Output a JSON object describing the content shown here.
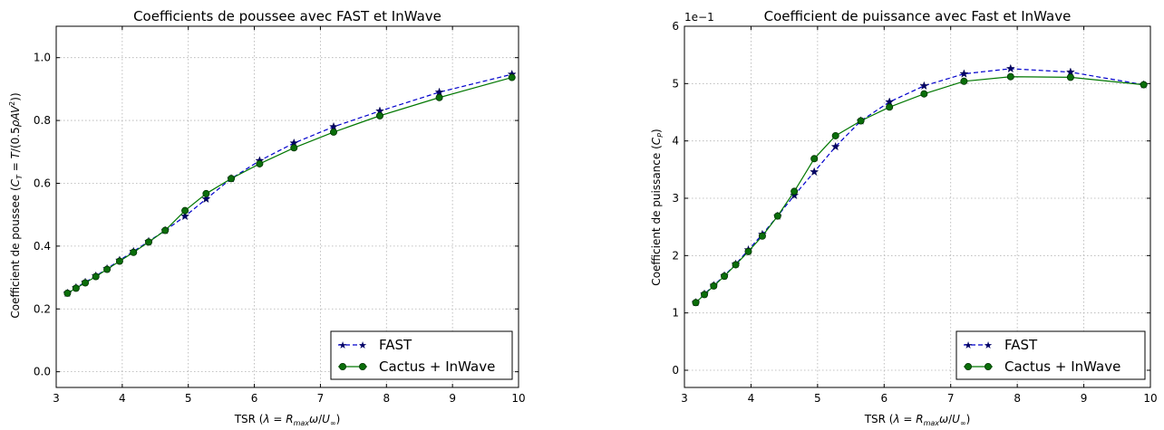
{
  "chart_data": [
    {
      "type": "line",
      "title": "Coefficients de poussee avec FAST et InWave",
      "xlabel": "TSR (λ = R_max ω / U_∞)",
      "ylabel": "Coefficient de poussee (C_T = T / (0.5 ρ A V²))",
      "xlim": [
        3,
        10
      ],
      "ylim": [
        -0.05,
        1.1
      ],
      "xticks": [
        3,
        4,
        5,
        6,
        7,
        8,
        9,
        10
      ],
      "xtick_labels": [
        "3",
        "4",
        "5",
        "6",
        "7",
        "8",
        "9",
        "10"
      ],
      "yticks": [
        0.0,
        0.2,
        0.4,
        0.6,
        0.8,
        1.0
      ],
      "ytick_labels": [
        "0.0",
        "0.2",
        "0.4",
        "0.6",
        "0.8",
        "1.0"
      ],
      "grid": true,
      "legend_position": "bottom-right",
      "series": [
        {
          "name": "FAST",
          "style": "dashed-star",
          "color": "#0000cc",
          "x": [
            3.17,
            3.3,
            3.44,
            3.6,
            3.77,
            3.96,
            4.17,
            4.4,
            4.65,
            4.95,
            5.27,
            5.65,
            6.08,
            6.6,
            7.2,
            7.9,
            8.8,
            9.9
          ],
          "y": [
            0.25,
            0.268,
            0.285,
            0.305,
            0.328,
            0.355,
            0.383,
            0.415,
            0.45,
            0.495,
            0.55,
            0.615,
            0.672,
            0.728,
            0.78,
            0.83,
            0.89,
            0.947
          ]
        },
        {
          "name": "Cactus + InWave",
          "style": "solid-circle",
          "color": "#007700",
          "x": [
            3.17,
            3.3,
            3.44,
            3.6,
            3.77,
            3.96,
            4.17,
            4.4,
            4.65,
            4.95,
            5.27,
            5.65,
            6.08,
            6.6,
            7.2,
            7.9,
            8.8,
            9.9
          ],
          "y": [
            0.25,
            0.266,
            0.283,
            0.303,
            0.326,
            0.352,
            0.38,
            0.413,
            0.45,
            0.513,
            0.567,
            0.615,
            0.662,
            0.713,
            0.763,
            0.815,
            0.873,
            0.937
          ]
        }
      ]
    },
    {
      "type": "line",
      "title": "Coefficient de puissance avec Fast et InWave",
      "xlabel": "TSR (λ = R_max ω / U_∞)",
      "ylabel": "Coefficient de puissance (C_P)",
      "scale_note": "1e−1",
      "xlim": [
        3,
        10
      ],
      "ylim": [
        -0.3,
        6
      ],
      "xticks": [
        3,
        4,
        5,
        6,
        7,
        8,
        9,
        10
      ],
      "xtick_labels": [
        "3",
        "4",
        "5",
        "6",
        "7",
        "8",
        "9",
        "10"
      ],
      "yticks": [
        0,
        1,
        2,
        3,
        4,
        5,
        6
      ],
      "ytick_labels": [
        "0",
        "1",
        "2",
        "3",
        "4",
        "5",
        "6"
      ],
      "grid": true,
      "legend_position": "bottom-right",
      "series": [
        {
          "name": "FAST",
          "style": "dashed-star",
          "color": "#0000cc",
          "x": [
            3.17,
            3.3,
            3.44,
            3.6,
            3.77,
            3.96,
            4.17,
            4.4,
            4.65,
            4.95,
            5.27,
            5.65,
            6.08,
            6.6,
            7.2,
            7.9,
            8.8,
            9.9
          ],
          "y": [
            1.18,
            1.33,
            1.48,
            1.65,
            1.85,
            2.1,
            2.37,
            2.69,
            3.05,
            3.46,
            3.9,
            4.35,
            4.68,
            4.96,
            5.17,
            5.26,
            5.2,
            4.98
          ]
        },
        {
          "name": "Cactus + InWave",
          "style": "solid-circle",
          "color": "#007700",
          "x": [
            3.17,
            3.3,
            3.44,
            3.6,
            3.77,
            3.96,
            4.17,
            4.4,
            4.65,
            4.95,
            5.27,
            5.65,
            6.08,
            6.6,
            7.2,
            7.9,
            8.8,
            9.9
          ],
          "y": [
            1.18,
            1.32,
            1.47,
            1.64,
            1.84,
            2.07,
            2.34,
            2.69,
            3.12,
            3.69,
            4.09,
            4.35,
            4.59,
            4.82,
            5.04,
            5.12,
            5.11,
            4.98
          ]
        }
      ]
    }
  ]
}
